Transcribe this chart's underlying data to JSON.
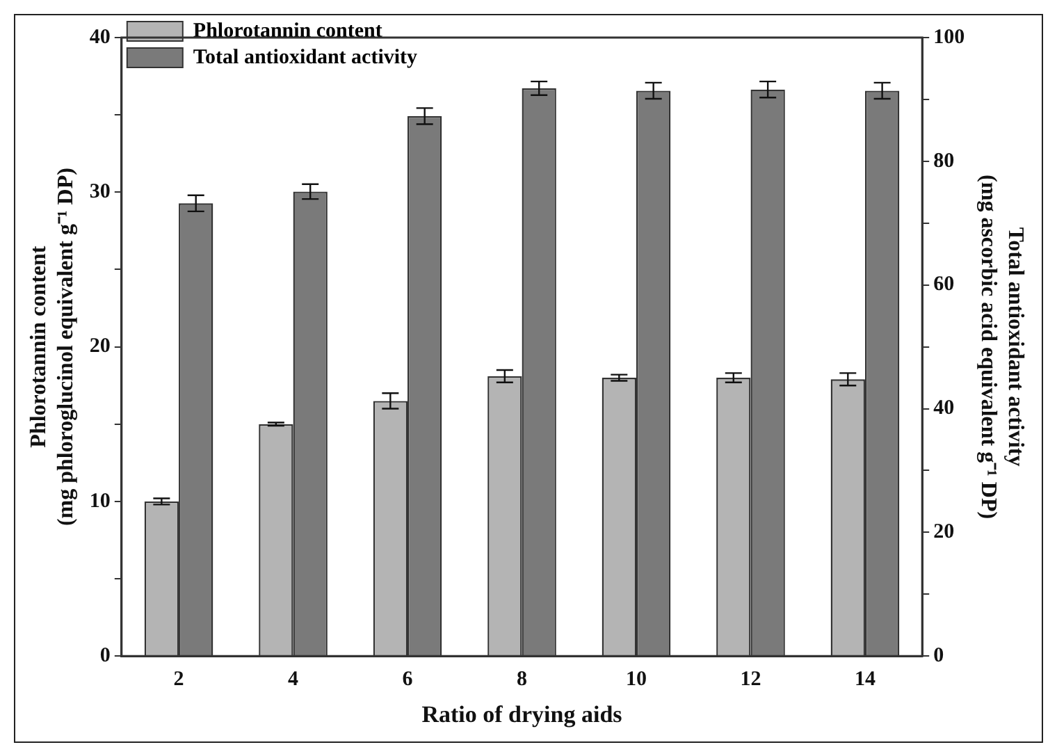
{
  "chart_data": {
    "type": "bar",
    "xlabel": "Ratio of drying aids",
    "ylabel": "Phlorotannin content\n(mg phloroglucinol equivalent g⁻¹ DP)",
    "y2label": "Total antioxidant activity\n(mg ascorbic acid equivalent g⁻¹ DP)",
    "categories": [
      "2",
      "4",
      "6",
      "8",
      "10",
      "12",
      "14"
    ],
    "series": [
      {
        "name": "Phlorotannin content",
        "color": "#b4b4b4",
        "values": [
          10.0,
          15.0,
          16.5,
          18.1,
          18.0,
          18.0,
          17.9
        ],
        "errors": [
          0.2,
          0.1,
          0.5,
          0.4,
          0.2,
          0.3,
          0.4
        ]
      },
      {
        "name": "Total antioxidant activity",
        "color": "#7a7a7a",
        "axis": "y2",
        "values": [
          73.2,
          75.1,
          87.3,
          91.8,
          91.4,
          91.6,
          91.4
        ],
        "errors": [
          1.3,
          1.2,
          1.3,
          1.1,
          1.3,
          1.3,
          1.3
        ]
      }
    ],
    "ylim": [
      0,
      40
    ],
    "yticks": [
      0,
      {
        "value": 5,
        "label": null
      },
      10,
      {
        "value": 15,
        "label": null
      },
      20,
      {
        "value": 25,
        "label": null
      },
      30,
      {
        "value": 35,
        "label": null
      },
      40
    ],
    "y2lim": [
      0,
      100
    ],
    "y2ticks": [
      0,
      {
        "value": 10,
        "label": null
      },
      20,
      {
        "value": 30,
        "label": null
      },
      40,
      {
        "value": 50,
        "label": null
      },
      60,
      {
        "value": 70,
        "label": null
      },
      80,
      {
        "value": 90,
        "label": null
      },
      100
    ],
    "legend": "top left",
    "grid": false
  }
}
